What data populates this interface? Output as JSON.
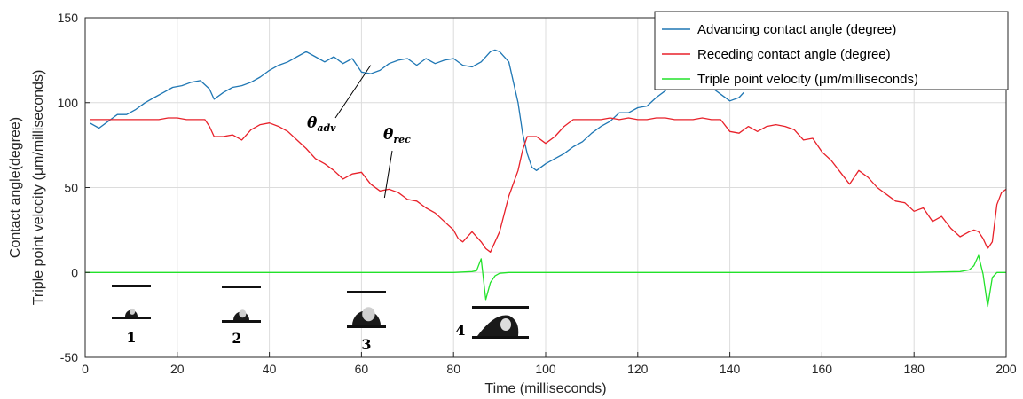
{
  "chart_data": {
    "type": "line",
    "title": "",
    "xlabel": "Time (milliseconds)",
    "ylabel_lines": [
      "Contact angle(degree)",
      "Triple point velocity (μm/milliseconds)"
    ],
    "xlim": [
      0,
      200
    ],
    "ylim": [
      -50,
      150
    ],
    "xticks": [
      0,
      20,
      40,
      60,
      80,
      100,
      120,
      140,
      160,
      180,
      200
    ],
    "yticks": [
      -50,
      0,
      50,
      100,
      150
    ],
    "grid": true,
    "legend_position": "top-right",
    "series": [
      {
        "name": "Advancing contact angle (degree)",
        "color": "#1f77b4",
        "x": [
          1,
          3,
          5,
          7,
          9,
          11,
          13,
          15,
          17,
          19,
          21,
          23,
          25,
          27,
          28,
          30,
          32,
          34,
          36,
          38,
          40,
          42,
          44,
          46,
          48,
          50,
          52,
          54,
          56,
          58,
          60,
          62,
          64,
          66,
          68,
          70,
          72,
          74,
          76,
          78,
          80,
          82,
          84,
          86,
          88,
          89,
          90,
          92,
          94,
          95,
          96,
          97,
          98,
          100,
          102,
          104,
          106,
          108,
          110,
          112,
          114,
          116,
          118,
          120,
          122,
          124,
          126,
          128,
          130,
          132,
          134,
          136,
          138,
          140,
          142,
          143
        ],
        "y": [
          88,
          85,
          89,
          93,
          93,
          96,
          100,
          103,
          106,
          109,
          110,
          112,
          113,
          108,
          102,
          106,
          109,
          110,
          112,
          115,
          119,
          122,
          124,
          127,
          130,
          127,
          124,
          127,
          123,
          126,
          118,
          117,
          119,
          123,
          125,
          126,
          122,
          126,
          123,
          125,
          126,
          122,
          121,
          124,
          130,
          131,
          130,
          124,
          100,
          82,
          70,
          62,
          60,
          64,
          67,
          70,
          74,
          77,
          82,
          86,
          89,
          94,
          94,
          97,
          98,
          103,
          107,
          113,
          118,
          115,
          112,
          109,
          105,
          101,
          103,
          106
        ]
      },
      {
        "name": "Receding contact angle (degree)",
        "color": "#e8212a",
        "x": [
          1,
          4,
          7,
          10,
          13,
          16,
          18,
          20,
          22,
          24,
          26,
          27,
          28,
          30,
          32,
          34,
          36,
          38,
          40,
          42,
          44,
          46,
          48,
          50,
          52,
          54,
          56,
          58,
          60,
          62,
          64,
          66,
          68,
          70,
          72,
          74,
          76,
          78,
          80,
          81,
          82,
          84,
          86,
          87,
          88,
          90,
          92,
          94,
          95,
          96,
          98,
          100,
          102,
          104,
          106,
          108,
          110,
          112,
          114,
          116,
          118,
          120,
          122,
          124,
          126,
          128,
          130,
          132,
          134,
          136,
          138,
          140,
          142,
          144,
          146,
          148,
          150,
          152,
          154,
          156,
          158,
          160,
          162,
          164,
          166,
          168,
          170,
          172,
          174,
          176,
          178,
          180,
          182,
          184,
          186,
          188,
          190,
          192,
          193,
          194,
          195,
          196,
          197,
          198,
          199,
          200
        ],
        "y": [
          90,
          90,
          90,
          90,
          90,
          90,
          91,
          91,
          90,
          90,
          90,
          86,
          80,
          80,
          81,
          78,
          84,
          87,
          88,
          86,
          83,
          78,
          73,
          67,
          64,
          60,
          55,
          58,
          59,
          52,
          48,
          49,
          47,
          43,
          42,
          38,
          35,
          30,
          25,
          20,
          18,
          24,
          18,
          14,
          12,
          24,
          45,
          60,
          72,
          80,
          80,
          76,
          80,
          86,
          90,
          90,
          90,
          90,
          91,
          90,
          91,
          90,
          90,
          91,
          91,
          90,
          90,
          90,
          91,
          90,
          90,
          83,
          82,
          86,
          83,
          86,
          87,
          86,
          84,
          78,
          79,
          71,
          66,
          59,
          52,
          60,
          56,
          50,
          46,
          42,
          41,
          36,
          38,
          30,
          33,
          26,
          21,
          24,
          25,
          24,
          20,
          14,
          18,
          40,
          47,
          49
        ]
      },
      {
        "name": "Triple point velocity (μm/milliseconds)",
        "color": "#22e22a",
        "x": [
          0,
          10,
          20,
          30,
          40,
          50,
          60,
          70,
          80,
          84,
          85,
          86,
          87,
          88,
          89,
          90,
          92,
          100,
          110,
          120,
          130,
          140,
          150,
          160,
          170,
          180,
          190,
          192,
          193,
          194,
          195,
          196,
          197,
          198,
          200
        ],
        "y": [
          0,
          0,
          0,
          0,
          0,
          0,
          0,
          0,
          0,
          0.5,
          1,
          8,
          -16,
          -6,
          -2,
          -0.5,
          0,
          0,
          0,
          0,
          0,
          0,
          0,
          0,
          0,
          0,
          0.5,
          1.5,
          4,
          10,
          -1,
          -20,
          -3,
          0,
          0
        ]
      }
    ],
    "annotations": [
      {
        "symbol": "θ",
        "sub": "adv",
        "target_x": 62,
        "target_y": 122
      },
      {
        "symbol": "θ",
        "sub": "rec",
        "target_x": 65,
        "target_y": 44
      }
    ],
    "inset_labels": [
      "1",
      "2",
      "3",
      "4"
    ]
  }
}
